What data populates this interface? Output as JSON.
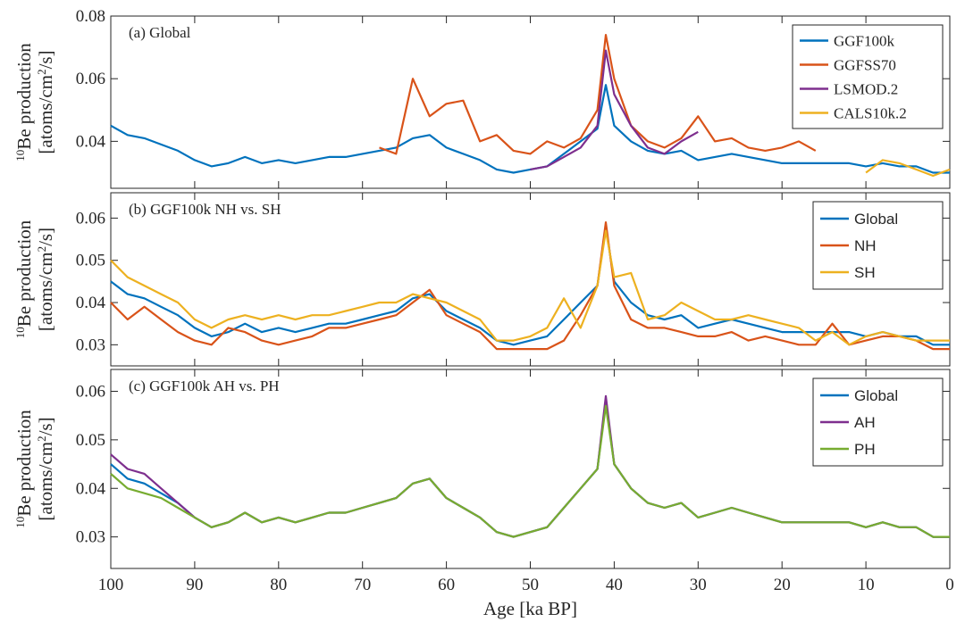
{
  "chart_data": [
    {
      "type": "line",
      "annotation": "(a) Global",
      "ylabel": [
        "10",
        "Be production",
        "[atoms/cm",
        "2",
        "/s]"
      ],
      "x": [
        100,
        98,
        96,
        94,
        92,
        90,
        88,
        86,
        84,
        82,
        80,
        78,
        76,
        74,
        72,
        70,
        68,
        66,
        64,
        62,
        60,
        58,
        56,
        54,
        52,
        50,
        48,
        46,
        44,
        42,
        41,
        40,
        38,
        36,
        34,
        32,
        30,
        28,
        26,
        24,
        22,
        20,
        18,
        16,
        14,
        12,
        10,
        8,
        6,
        4,
        2,
        0
      ],
      "xlim": [
        100,
        0
      ],
      "xticks": [
        100,
        90,
        80,
        70,
        60,
        50,
        40,
        30,
        20,
        10,
        0
      ],
      "ylim": [
        0.025,
        0.08
      ],
      "yticks": [
        0.04,
        0.06,
        0.08
      ],
      "legend": "upper right",
      "legend_font": "serif",
      "series": [
        {
          "name": "GGF100k",
          "color": "#0072BD",
          "values": [
            0.045,
            0.042,
            0.041,
            0.039,
            0.037,
            0.034,
            0.032,
            0.033,
            0.035,
            0.033,
            0.034,
            0.033,
            0.034,
            0.035,
            0.035,
            0.036,
            0.037,
            0.038,
            0.041,
            0.042,
            0.038,
            0.036,
            0.034,
            0.031,
            0.03,
            0.031,
            0.032,
            0.036,
            0.04,
            0.044,
            0.058,
            0.045,
            0.04,
            0.037,
            0.036,
            0.037,
            0.034,
            0.035,
            0.036,
            0.035,
            0.034,
            0.033,
            0.033,
            0.033,
            0.033,
            0.033,
            0.032,
            0.033,
            0.032,
            0.032,
            0.03,
            0.03
          ]
        },
        {
          "name": "GGFSS70",
          "color": "#D95319",
          "values": [
            null,
            null,
            null,
            null,
            null,
            null,
            null,
            null,
            null,
            null,
            null,
            null,
            null,
            null,
            null,
            null,
            0.038,
            0.036,
            0.06,
            0.048,
            0.052,
            0.053,
            0.04,
            0.042,
            0.037,
            0.036,
            0.04,
            0.038,
            0.041,
            0.05,
            0.074,
            0.06,
            0.045,
            0.04,
            0.038,
            0.041,
            0.048,
            0.04,
            0.041,
            0.038,
            0.037,
            0.038,
            0.04,
            0.037,
            null,
            null,
            null,
            null,
            null,
            null,
            null,
            null
          ]
        },
        {
          "name": "LSMOD.2",
          "color": "#7E2F8E",
          "values": [
            null,
            null,
            null,
            null,
            null,
            null,
            null,
            null,
            null,
            null,
            null,
            null,
            null,
            null,
            null,
            null,
            null,
            null,
            null,
            null,
            null,
            null,
            null,
            null,
            null,
            0.031,
            0.032,
            0.035,
            0.038,
            0.045,
            0.069,
            0.055,
            0.045,
            0.038,
            0.036,
            0.04,
            0.043,
            null,
            null,
            null,
            null,
            null,
            null,
            null,
            null,
            null,
            null,
            null,
            null,
            null,
            null,
            null
          ]
        },
        {
          "name": "CALS10k.2",
          "color": "#EDB120",
          "values": [
            null,
            null,
            null,
            null,
            null,
            null,
            null,
            null,
            null,
            null,
            null,
            null,
            null,
            null,
            null,
            null,
            null,
            null,
            null,
            null,
            null,
            null,
            null,
            null,
            null,
            null,
            null,
            null,
            null,
            null,
            null,
            null,
            null,
            null,
            null,
            null,
            null,
            null,
            null,
            null,
            null,
            null,
            null,
            null,
            null,
            null,
            0.03,
            0.034,
            0.033,
            0.031,
            0.029,
            0.031
          ]
        }
      ]
    },
    {
      "type": "line",
      "annotation": "(b) GGF100k NH vs. SH",
      "ylabel": [
        "10",
        "Be production",
        "[atoms/cm",
        "2",
        "/s]"
      ],
      "x": [
        100,
        98,
        96,
        94,
        92,
        90,
        88,
        86,
        84,
        82,
        80,
        78,
        76,
        74,
        72,
        70,
        68,
        66,
        64,
        62,
        60,
        58,
        56,
        54,
        52,
        50,
        48,
        46,
        44,
        42,
        41,
        40,
        38,
        36,
        34,
        32,
        30,
        28,
        26,
        24,
        22,
        20,
        18,
        16,
        14,
        12,
        10,
        8,
        6,
        4,
        2,
        0
      ],
      "xlim": [
        100,
        0
      ],
      "xticks": [
        100,
        90,
        80,
        70,
        60,
        50,
        40,
        30,
        20,
        10,
        0
      ],
      "ylim": [
        0.025,
        0.066
      ],
      "yticks": [
        0.03,
        0.04,
        0.05,
        0.06
      ],
      "legend": "upper right",
      "legend_font": "sans",
      "series": [
        {
          "name": "Global",
          "color": "#0072BD",
          "values": [
            0.045,
            0.042,
            0.041,
            0.039,
            0.037,
            0.034,
            0.032,
            0.033,
            0.035,
            0.033,
            0.034,
            0.033,
            0.034,
            0.035,
            0.035,
            0.036,
            0.037,
            0.038,
            0.041,
            0.042,
            0.038,
            0.036,
            0.034,
            0.031,
            0.03,
            0.031,
            0.032,
            0.036,
            0.04,
            0.044,
            0.058,
            0.045,
            0.04,
            0.037,
            0.036,
            0.037,
            0.034,
            0.035,
            0.036,
            0.035,
            0.034,
            0.033,
            0.033,
            0.033,
            0.033,
            0.033,
            0.032,
            0.033,
            0.032,
            0.032,
            0.03,
            0.03
          ]
        },
        {
          "name": "NH",
          "color": "#D95319",
          "values": [
            0.04,
            0.036,
            0.039,
            0.036,
            0.033,
            0.031,
            0.03,
            0.034,
            0.033,
            0.031,
            0.03,
            0.031,
            0.032,
            0.034,
            0.034,
            0.035,
            0.036,
            0.037,
            0.04,
            0.043,
            0.037,
            0.035,
            0.033,
            0.029,
            0.029,
            0.029,
            0.029,
            0.031,
            0.037,
            0.044,
            0.059,
            0.044,
            0.036,
            0.034,
            0.034,
            0.033,
            0.032,
            0.032,
            0.033,
            0.031,
            0.032,
            0.031,
            0.03,
            0.03,
            0.035,
            0.03,
            0.031,
            0.032,
            0.032,
            0.031,
            0.029,
            0.029
          ]
        },
        {
          "name": "SH",
          "color": "#EDB120",
          "values": [
            0.05,
            0.046,
            0.044,
            0.042,
            0.04,
            0.036,
            0.034,
            0.036,
            0.037,
            0.036,
            0.037,
            0.036,
            0.037,
            0.037,
            0.038,
            0.039,
            0.04,
            0.04,
            0.042,
            0.041,
            0.04,
            0.038,
            0.036,
            0.031,
            0.031,
            0.032,
            0.034,
            0.041,
            0.034,
            0.044,
            0.057,
            0.046,
            0.047,
            0.036,
            0.037,
            0.04,
            0.038,
            0.036,
            0.036,
            0.037,
            0.036,
            0.035,
            0.034,
            0.031,
            0.033,
            0.03,
            0.032,
            0.033,
            0.032,
            0.031,
            0.031,
            0.031
          ]
        }
      ]
    },
    {
      "type": "line",
      "annotation": "(c) GGF100k AH vs. PH",
      "ylabel": [
        "10",
        "Be production",
        "[atoms/cm",
        "2",
        "/s]"
      ],
      "xlabel": "Age [ka BP]",
      "x": [
        100,
        98,
        96,
        94,
        92,
        90,
        88,
        86,
        84,
        82,
        80,
        78,
        76,
        74,
        72,
        70,
        68,
        66,
        64,
        62,
        60,
        58,
        56,
        54,
        52,
        50,
        48,
        46,
        44,
        42,
        41,
        40,
        38,
        36,
        34,
        32,
        30,
        28,
        26,
        24,
        22,
        20,
        18,
        16,
        14,
        12,
        10,
        8,
        6,
        4,
        2,
        0
      ],
      "xlim": [
        100,
        0
      ],
      "xticks": [
        100,
        90,
        80,
        70,
        60,
        50,
        40,
        30,
        20,
        10,
        0
      ],
      "ylim": [
        0.0235,
        0.0645
      ],
      "yticks": [
        0.03,
        0.04,
        0.05,
        0.06
      ],
      "legend": "upper right",
      "legend_font": "sans",
      "series": [
        {
          "name": "Global",
          "color": "#0072BD",
          "values": [
            0.045,
            0.042,
            0.041,
            0.039,
            0.037,
            0.034,
            0.032,
            0.033,
            0.035,
            0.033,
            0.034,
            0.033,
            0.034,
            0.035,
            0.035,
            0.036,
            0.037,
            0.038,
            0.041,
            0.042,
            0.038,
            0.036,
            0.034,
            0.031,
            0.03,
            0.031,
            0.032,
            0.036,
            0.04,
            0.044,
            0.058,
            0.045,
            0.04,
            0.037,
            0.036,
            0.037,
            0.034,
            0.035,
            0.036,
            0.035,
            0.034,
            0.033,
            0.033,
            0.033,
            0.033,
            0.033,
            0.032,
            0.033,
            0.032,
            0.032,
            0.03,
            0.03
          ]
        },
        {
          "name": "AH",
          "color": "#7E2F8E",
          "values": [
            0.047,
            0.044,
            0.043,
            0.04,
            0.037,
            0.034,
            0.032,
            0.033,
            0.035,
            0.033,
            0.034,
            0.033,
            0.034,
            0.035,
            0.035,
            0.036,
            0.037,
            0.038,
            0.041,
            0.042,
            0.038,
            0.036,
            0.034,
            0.031,
            0.03,
            0.031,
            0.032,
            0.036,
            0.04,
            0.044,
            0.059,
            0.045,
            0.04,
            0.037,
            0.036,
            0.037,
            0.034,
            0.035,
            0.036,
            0.035,
            0.034,
            0.033,
            0.033,
            0.033,
            0.033,
            0.033,
            0.032,
            0.033,
            0.032,
            0.032,
            0.03,
            0.03
          ]
        },
        {
          "name": "PH",
          "color": "#77AC30",
          "values": [
            0.043,
            0.04,
            0.039,
            0.038,
            0.036,
            0.034,
            0.032,
            0.033,
            0.035,
            0.033,
            0.034,
            0.033,
            0.034,
            0.035,
            0.035,
            0.036,
            0.037,
            0.038,
            0.041,
            0.042,
            0.038,
            0.036,
            0.034,
            0.031,
            0.03,
            0.031,
            0.032,
            0.036,
            0.04,
            0.044,
            0.057,
            0.045,
            0.04,
            0.037,
            0.036,
            0.037,
            0.034,
            0.035,
            0.036,
            0.035,
            0.034,
            0.033,
            0.033,
            0.033,
            0.033,
            0.033,
            0.032,
            0.033,
            0.032,
            0.032,
            0.03,
            0.03
          ]
        }
      ]
    }
  ]
}
